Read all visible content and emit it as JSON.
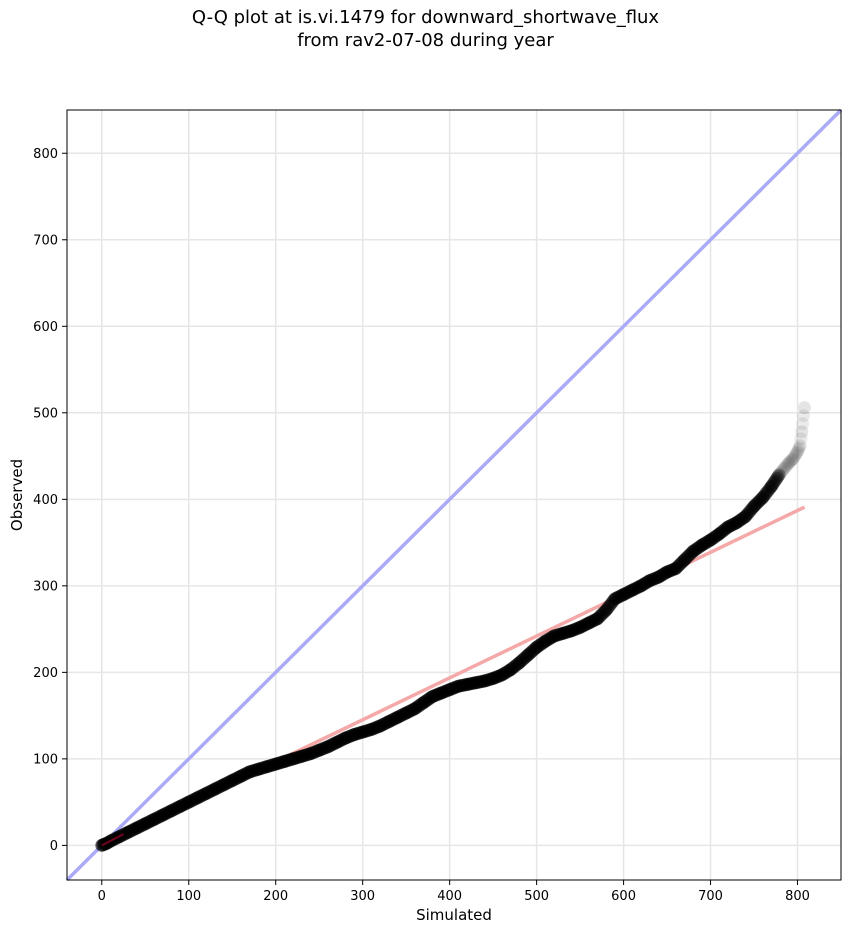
{
  "title": {
    "line1": "Q-Q plot at is.vi.1479 for downward_shortwave_flux",
    "line2": "from rav2-07-08 during year"
  },
  "chart_data": {
    "type": "scatter",
    "xlabel": "Simulated",
    "ylabel": "Observed",
    "xlim": [
      -40,
      850
    ],
    "ylim": [
      -40,
      850
    ],
    "xticks": [
      0,
      100,
      200,
      300,
      400,
      500,
      600,
      700,
      800
    ],
    "yticks": [
      0,
      100,
      200,
      300,
      400,
      500,
      600,
      700,
      800
    ],
    "grid": true,
    "colors": {
      "points": "#000000",
      "identity_line": "#aaaaf8",
      "fit_line": "#f5a8a8",
      "low_segment": "#8b0000",
      "low_segment_blue": "#1a1ab0"
    },
    "reference_line": {
      "name": "1:1",
      "x": [
        -40,
        850
      ],
      "y": [
        -40,
        850
      ]
    },
    "fit_line": {
      "x": [
        0,
        808
      ],
      "y": [
        0,
        391
      ]
    },
    "quantiles": {
      "x": [
        0,
        2,
        5,
        10,
        20,
        30,
        40,
        50,
        60,
        70,
        80,
        90,
        100,
        110,
        120,
        130,
        140,
        150,
        160,
        170,
        180,
        190,
        200,
        210,
        220,
        230,
        240,
        250,
        260,
        270,
        280,
        290,
        300,
        310,
        320,
        330,
        340,
        350,
        360,
        370,
        380,
        390,
        400,
        410,
        420,
        430,
        440,
        450,
        460,
        470,
        480,
        490,
        500,
        510,
        520,
        530,
        540,
        550,
        560,
        570,
        580,
        590,
        600,
        610,
        620,
        630,
        640,
        650,
        660,
        670,
        680,
        690,
        700,
        710,
        720,
        730,
        740,
        750,
        760,
        770,
        780,
        790,
        795,
        800,
        803,
        805,
        808
      ],
      "y": [
        0,
        1,
        2,
        5,
        10,
        15,
        20,
        25,
        30,
        35,
        40,
        45,
        50,
        55,
        60,
        65,
        70,
        75,
        80,
        85,
        88,
        91,
        94,
        97,
        100,
        103,
        106,
        110,
        114,
        119,
        124,
        128,
        131,
        134,
        138,
        143,
        148,
        153,
        158,
        165,
        172,
        176,
        180,
        184,
        186,
        188,
        190,
        193,
        197,
        203,
        211,
        220,
        229,
        236,
        242,
        245,
        248,
        252,
        257,
        262,
        272,
        285,
        290,
        295,
        300,
        306,
        310,
        316,
        320,
        330,
        340,
        347,
        353,
        360,
        368,
        373,
        380,
        392,
        402,
        415,
        430,
        442,
        447,
        455,
        462,
        478,
        506
      ]
    },
    "low_segment": {
      "x": [
        0,
        25
      ],
      "y": [
        0,
        13
      ]
    }
  }
}
